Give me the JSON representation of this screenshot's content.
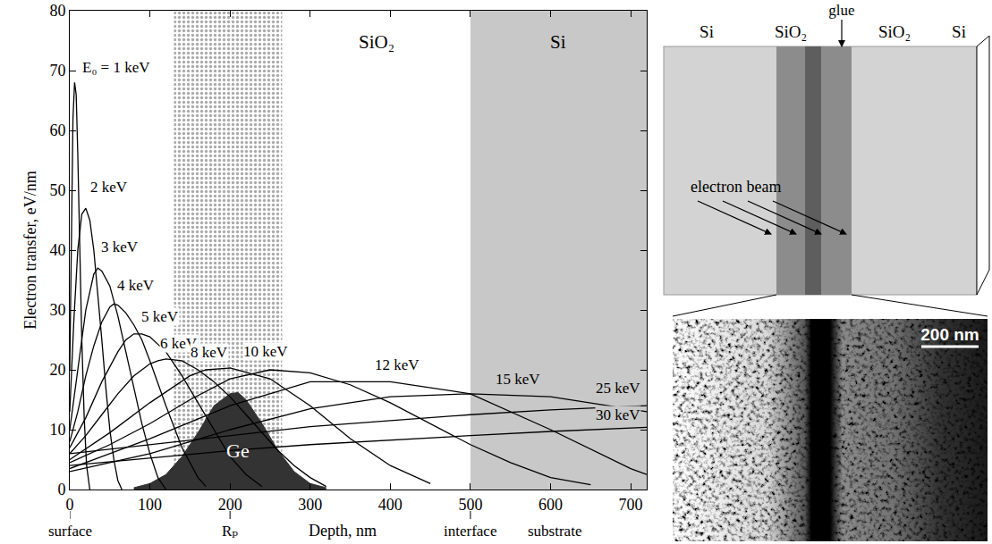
{
  "chart_data": {
    "type": "line",
    "xlabel": "Depth, nm",
    "ylabel": "Electron transfer, eV/nm",
    "xlim": [
      0,
      720
    ],
    "ylim": [
      0,
      80
    ],
    "xticks": [
      0,
      100,
      200,
      300,
      400,
      500,
      600,
      700
    ],
    "yticks": [
      0,
      10,
      20,
      30,
      40,
      50,
      60,
      70,
      80
    ],
    "grid": false,
    "series": [
      {
        "name": "E₀ = 1 keV",
        "color": "#000000",
        "x": [
          0,
          2,
          4,
          6,
          8,
          10,
          12,
          15,
          18,
          21,
          25
        ],
        "values": [
          20,
          45,
          62,
          68,
          66,
          56,
          42,
          25,
          12,
          4,
          0
        ]
      },
      {
        "name": "2 keV",
        "color": "#000000",
        "x": [
          0,
          5,
          10,
          15,
          20,
          25,
          30,
          35,
          40,
          45,
          50,
          55,
          60,
          65
        ],
        "values": [
          13,
          28,
          40,
          46,
          47,
          45,
          40,
          33,
          25,
          17,
          10,
          5,
          1.5,
          0
        ]
      },
      {
        "name": "3 keV",
        "color": "#000000",
        "x": [
          0,
          10,
          20,
          30,
          35,
          40,
          50,
          60,
          70,
          80,
          90,
          100,
          110,
          120
        ],
        "values": [
          10,
          20,
          30,
          36,
          37,
          36.5,
          34,
          29,
          23,
          17,
          11,
          6,
          2,
          0
        ]
      },
      {
        "name": "4 keV",
        "color": "#000000",
        "x": [
          0,
          10,
          20,
          30,
          40,
          50,
          55,
          60,
          70,
          80,
          90,
          100,
          120,
          140,
          160,
          170
        ],
        "values": [
          8,
          13,
          19,
          24,
          28,
          30.5,
          31,
          30.8,
          29.5,
          27.5,
          25,
          21.5,
          14,
          7,
          2,
          0.5
        ]
      },
      {
        "name": "5 keV",
        "color": "#000000",
        "x": [
          0,
          20,
          40,
          60,
          70,
          80,
          90,
          100,
          120,
          140,
          160,
          180,
          200,
          220,
          240
        ],
        "values": [
          7,
          12,
          18,
          23,
          25,
          26,
          26,
          25.5,
          23,
          19,
          14.5,
          10,
          5.5,
          2.5,
          0.5
        ]
      },
      {
        "name": "6 keV",
        "color": "#000000",
        "x": [
          0,
          20,
          40,
          60,
          80,
          100,
          110,
          120,
          140,
          160,
          180,
          200,
          220,
          240,
          260,
          280,
          300,
          320
        ],
        "values": [
          6,
          9,
          12.5,
          16,
          19,
          21,
          21.5,
          21.8,
          21.5,
          20,
          18,
          15.5,
          12.5,
          9.5,
          6.5,
          4,
          2,
          0.5
        ]
      },
      {
        "name": "8 keV",
        "color": "#000000",
        "x": [
          0,
          50,
          100,
          150,
          170,
          200,
          250,
          300,
          350,
          400,
          450
        ],
        "values": [
          5,
          9.5,
          14.5,
          19,
          20,
          20.3,
          18.5,
          14,
          8.5,
          4,
          1
        ]
      },
      {
        "name": "10 keV",
        "color": "#000000",
        "x": [
          0,
          50,
          100,
          150,
          200,
          250,
          300,
          350,
          400,
          450,
          500,
          550,
          600,
          650
        ],
        "values": [
          4.5,
          7.5,
          11,
          15,
          18.5,
          20,
          19.5,
          17.5,
          14.5,
          11,
          7.5,
          4.5,
          2,
          0.8
        ]
      },
      {
        "name": "12 keV",
        "color": "#000000",
        "x": [
          0,
          100,
          200,
          300,
          400,
          500,
          600,
          700,
          720
        ],
        "values": [
          3.5,
          8.5,
          14,
          18,
          18,
          16,
          10,
          3.5,
          2.5
        ]
      },
      {
        "name": "15 keV",
        "color": "#000000",
        "x": [
          0,
          100,
          200,
          300,
          400,
          500,
          600,
          700,
          720
        ],
        "values": [
          3,
          6,
          10,
          13.5,
          15.5,
          16,
          15.5,
          13.5,
          13
        ]
      },
      {
        "name": "25 keV",
        "color": "#000000",
        "x": [
          0,
          100,
          200,
          300,
          400,
          500,
          600,
          700,
          720
        ],
        "values": [
          6,
          7.5,
          9,
          10.5,
          11.5,
          12.5,
          13.3,
          13.9,
          14
        ]
      },
      {
        "name": "30 keV",
        "color": "#000000",
        "x": [
          0,
          100,
          200,
          300,
          400,
          500,
          600,
          700,
          720
        ],
        "values": [
          4,
          5.3,
          6.5,
          7.5,
          8.3,
          9,
          9.7,
          10.3,
          10.4
        ]
      }
    ],
    "distribution": {
      "name": "Ge",
      "type": "area",
      "color": "#333333",
      "x": [
        80,
        100,
        120,
        140,
        160,
        180,
        200,
        210,
        220,
        240,
        260,
        280,
        300,
        320
      ],
      "values": [
        0.3,
        1,
        2.5,
        5.5,
        9.5,
        14,
        16,
        16.2,
        15,
        11,
        6.5,
        3,
        1,
        0.3
      ]
    },
    "regions": [
      {
        "x0": 130,
        "x1": 265,
        "marker": "dots"
      },
      {
        "x0": 265,
        "x1": 500,
        "label": "SiO₂",
        "color": "#ffffff"
      },
      {
        "x0": 500,
        "x1": 720,
        "label": "Si",
        "color": "#c8c8c8"
      }
    ],
    "x_marks": [
      {
        "value": 0,
        "label": "surface"
      },
      {
        "value": 200,
        "label": "Rₚ"
      },
      {
        "value": 500,
        "label": "interface"
      }
    ],
    "x_notes": [
      {
        "value": 605,
        "label": "substrate"
      }
    ]
  },
  "diagram": {
    "labels": [
      "Si",
      "SiO₂",
      "glue",
      "SiO₂",
      "Si"
    ],
    "beam_label": "electron beam",
    "image": {
      "scale_bar": "200 nm"
    }
  }
}
